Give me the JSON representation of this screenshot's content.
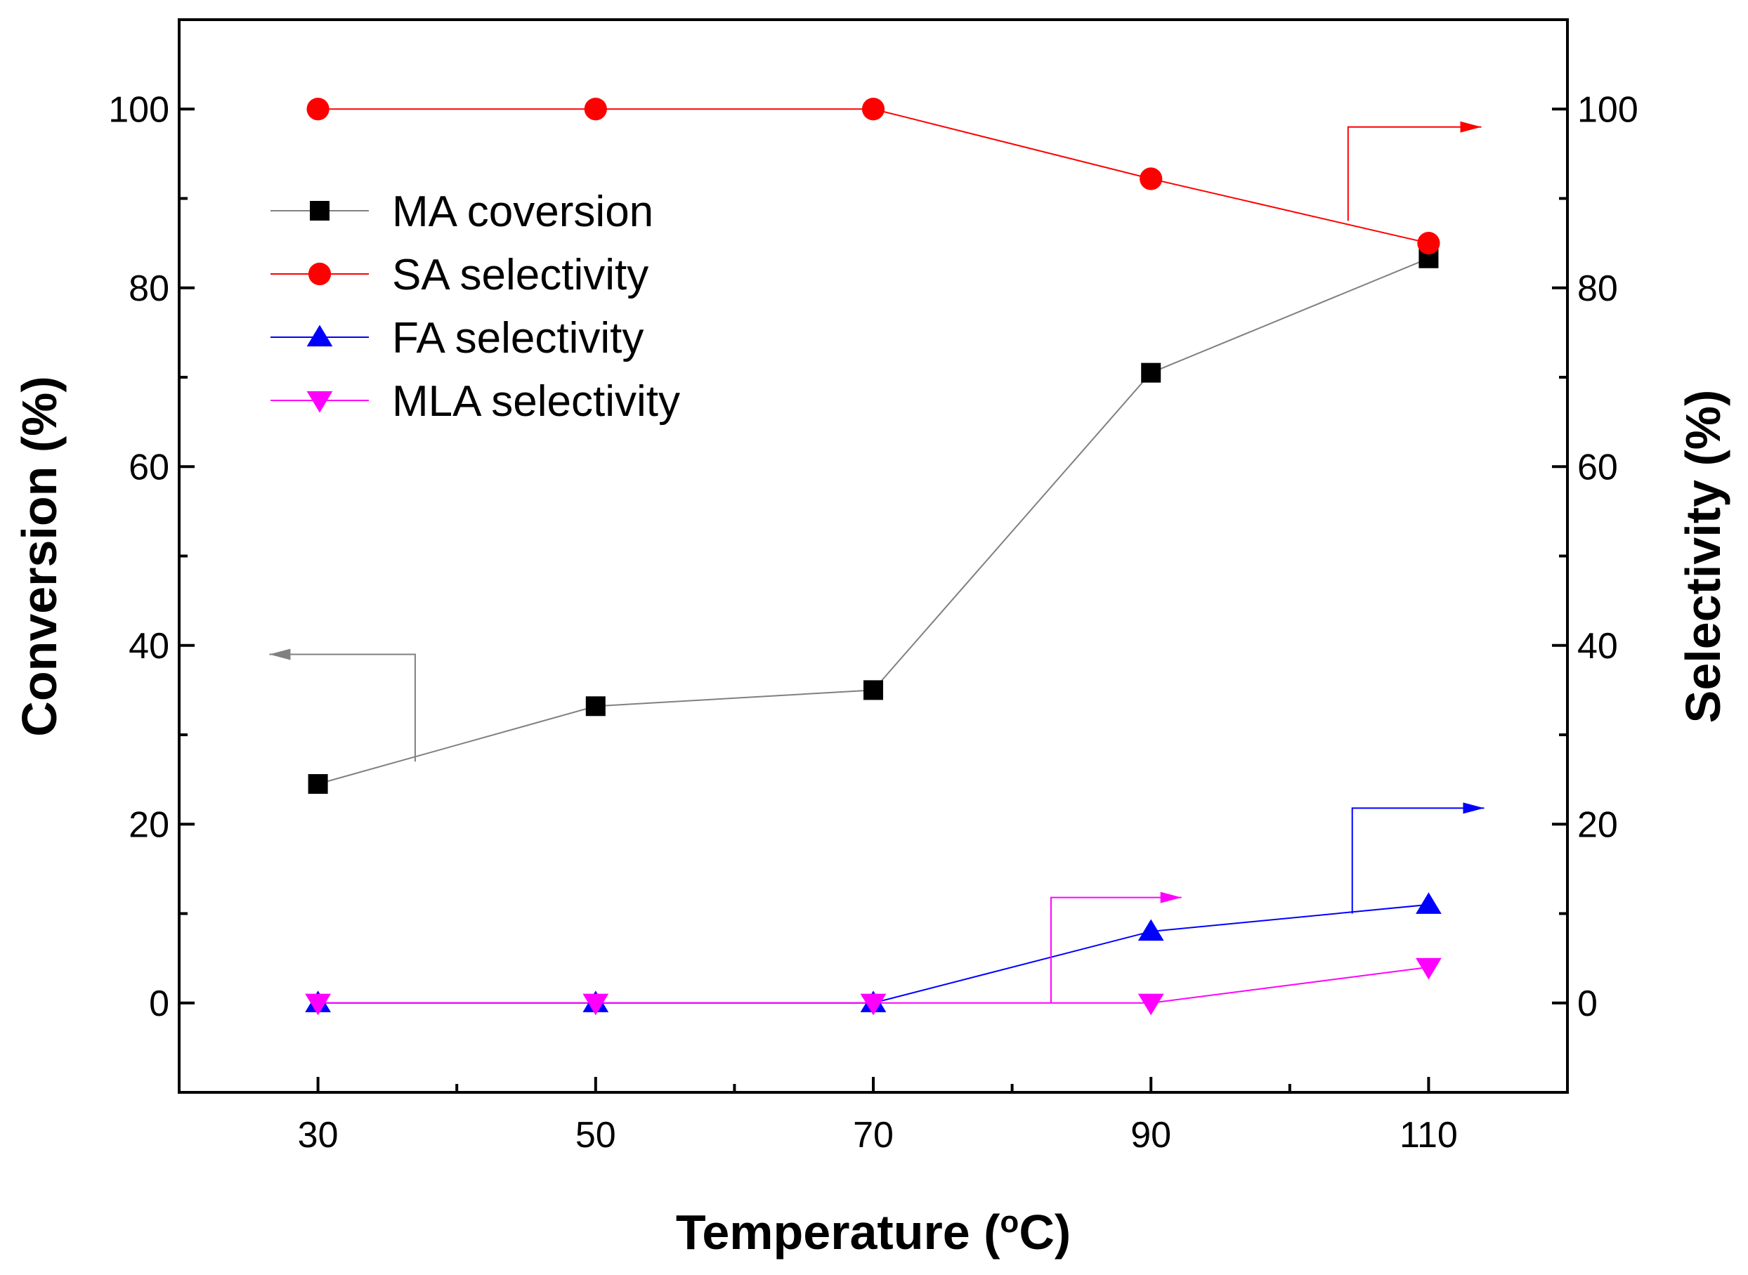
{
  "chart_data": {
    "type": "line",
    "xlabel": "Temperature (°C)",
    "xlabel_parts": {
      "main": "Temperature (",
      "superscript": "o",
      "suffix": "C)"
    },
    "ylabel_left": "Conversion (%)",
    "ylabel_right": "Selectivity (%)",
    "xlim": [
      20,
      120
    ],
    "ylim": [
      -10,
      110
    ],
    "x_ticks": [
      30,
      50,
      70,
      90,
      110
    ],
    "x_minor_ticks": [
      40,
      60,
      80,
      100
    ],
    "y_ticks": [
      0,
      20,
      40,
      60,
      80,
      100
    ],
    "y_minor_ticks": [
      -10,
      10,
      30,
      50,
      70,
      90,
      110
    ],
    "x": [
      30,
      50,
      70,
      90,
      110
    ],
    "series": [
      {
        "name": "MA coversion",
        "axis": "left",
        "marker": "square",
        "color": "#000000",
        "line_color": "#808080",
        "values": [
          24.5,
          33.2,
          35.0,
          70.5,
          83.3
        ]
      },
      {
        "name": "SA selectivity",
        "axis": "right",
        "marker": "circle",
        "color": "#ff0000",
        "line_color": "#ff0000",
        "values": [
          100,
          100,
          100,
          92.2,
          85.0
        ]
      },
      {
        "name": "FA selectivity",
        "axis": "right",
        "marker": "triangle-up",
        "color": "#0000ff",
        "line_color": "#0000ff",
        "values": [
          0,
          0,
          0,
          8.0,
          11.0
        ]
      },
      {
        "name": "MLA selectivity",
        "axis": "right",
        "marker": "triangle-down",
        "color": "#ff00ff",
        "line_color": "#ff00ff",
        "values": [
          0,
          0,
          0,
          0,
          4.0
        ]
      }
    ],
    "legend_position": "top-left",
    "annotations": [
      {
        "type": "axis-pointer-arrow",
        "series": "MA coversion",
        "direction": "left",
        "anchor_data": [
          37,
          27
        ],
        "corner_data": [
          37,
          39
        ],
        "tip_data": [
          26.5,
          39
        ]
      },
      {
        "type": "axis-pointer-arrow",
        "series": "SA selectivity",
        "direction": "right",
        "anchor_data": [
          104.2,
          87.5
        ],
        "corner_data": [
          104.2,
          98
        ],
        "tip_data": [
          113.8,
          98
        ]
      },
      {
        "type": "axis-pointer-arrow",
        "series": "FA selectivity",
        "direction": "right",
        "anchor_data": [
          104.5,
          10
        ],
        "corner_data": [
          104.5,
          21.8
        ],
        "tip_data": [
          114,
          21.8
        ]
      },
      {
        "type": "axis-pointer-arrow",
        "series": "MLA selectivity",
        "direction": "right",
        "anchor_data": [
          82.8,
          0
        ],
        "corner_data": [
          82.8,
          11.8
        ],
        "tip_data": [
          92.2,
          11.8
        ]
      }
    ]
  }
}
